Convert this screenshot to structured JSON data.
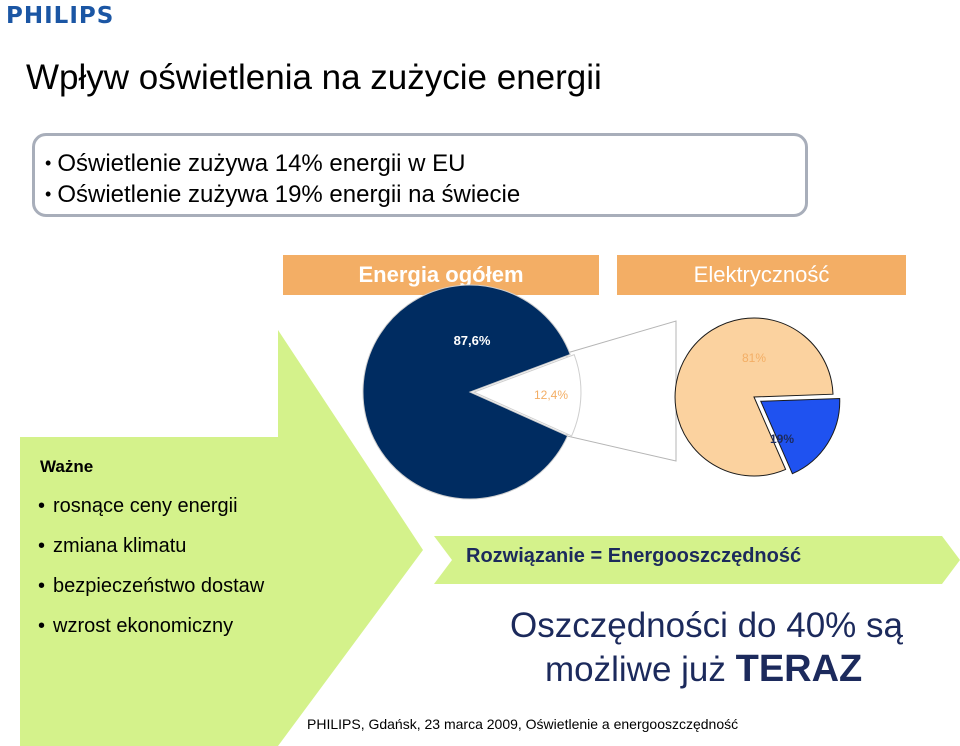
{
  "header": {
    "logo": "PHILIPS"
  },
  "slide": {
    "title": "Wpływ oświetlenia na zużycie energii",
    "bullets": [
      "Oświetlenie zużywa 14% energii w EU",
      "Oświetlenie zużywa 19% energii na świecie"
    ],
    "important_heading": "Ważne",
    "reasons": [
      "rosnące ceny energii",
      "zmiana klimatu",
      "bezpieczeństwo dostaw",
      "wzrost ekonomiczny"
    ],
    "solution": "Rozwiązanie = Energooszczędność",
    "savings_line1": "Oszczędności do 40% są",
    "savings_line2_prefix": "możliwe już ",
    "savings_line2_emphasis": "TERAZ",
    "footer": "PHILIPS, Gdańsk, 23 marca 2009, Oświetlenie a energooszczędność"
  },
  "colors": {
    "arrow": "#d4f28b",
    "header_bar": "#f3ae65",
    "dark_blue": "#002c61",
    "peach": "#fbd29f",
    "bright_blue": "#1f52f0",
    "banner": "#d4f28b",
    "logo_blue": "#1b56a4"
  },
  "chart_data": [
    {
      "type": "pie",
      "title": "Energia ogółem",
      "labels": [
        "87,6%",
        "12,4%"
      ],
      "values": [
        87.6,
        12.4
      ],
      "colors": [
        "#002c61",
        "#ffffff"
      ],
      "exploded_slice": 1
    },
    {
      "type": "pie",
      "title": "Elektryczność",
      "labels": [
        "81%",
        "19%"
      ],
      "values": [
        81,
        19
      ],
      "colors": [
        "#fbd29f",
        "#1f52f0"
      ],
      "exploded_slice": 1
    }
  ]
}
